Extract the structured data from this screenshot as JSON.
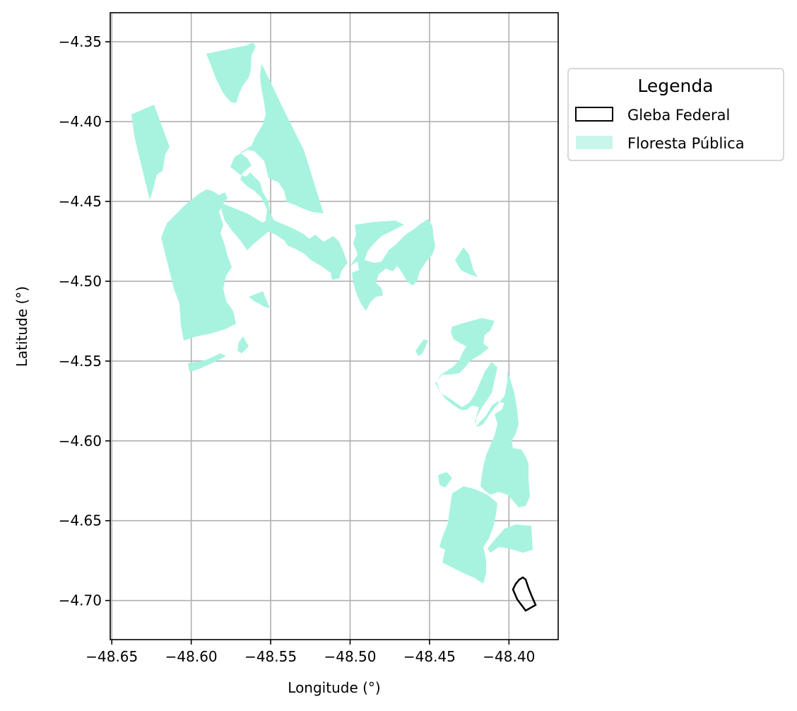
{
  "map": {
    "x_axis": {
      "label": "Longitude (°)",
      "range": [
        -48.651,
        -48.369
      ],
      "ticks": [
        "−48.65",
        "−48.60",
        "−48.55",
        "−48.50",
        "−48.45",
        "−48.40"
      ],
      "tick_values": [
        -48.65,
        -48.6,
        -48.55,
        -48.5,
        -48.45,
        -48.4
      ]
    },
    "y_axis": {
      "label": "Latitude (°)",
      "range": [
        -4.7245,
        -4.3318
      ],
      "ticks": [
        "−4.35",
        "−4.40",
        "−4.45",
        "−4.50",
        "−4.55",
        "−4.60",
        "−4.65",
        "−4.70"
      ],
      "tick_values": [
        -4.35,
        -4.4,
        -4.45,
        -4.5,
        -4.55,
        -4.6,
        -4.65,
        -4.7
      ]
    },
    "grid": true,
    "legend": {
      "title": "Legenda",
      "placement": "right of plot, top",
      "items": [
        {
          "label": "Gleba Federal",
          "style": "outline",
          "color": "#000000"
        },
        {
          "label": "Floresta Pública",
          "style": "fill",
          "color": "#a7f3e0"
        }
      ]
    },
    "colors": {
      "forest": "#a7f3e0",
      "gleba": "#000000",
      "grid": "#b0b0b0"
    }
  }
}
